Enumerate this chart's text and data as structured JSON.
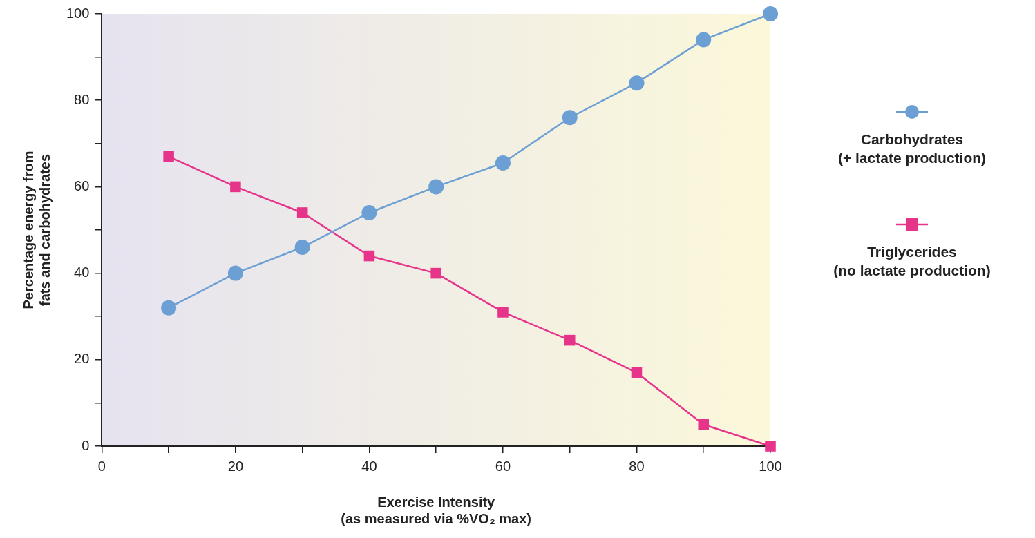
{
  "chart_data": {
    "type": "line",
    "xlabel": "Exercise Intensity\n(as measured via %VO₂ max)",
    "ylabel": "Percentage energy from\nfats and carbohydrates",
    "x": [
      10,
      20,
      30,
      40,
      50,
      60,
      70,
      80,
      90,
      100
    ],
    "series": [
      {
        "name": "Carbohydrates\n(+ lactate production)",
        "color": "#6c9fd3",
        "marker": "circle",
        "values": [
          32,
          40,
          46,
          54,
          60,
          65.5,
          76,
          84,
          94,
          100
        ]
      },
      {
        "name": "Triglycerides\n(no lactate production)",
        "color": "#e6348b",
        "marker": "square",
        "values": [
          67,
          60,
          54,
          44,
          40,
          31,
          24.5,
          17,
          5,
          0
        ]
      }
    ],
    "xlim": [
      0,
      100
    ],
    "xticks": [
      0,
      {
        "value": 10,
        "label": null
      },
      20,
      {
        "value": 30,
        "label": null
      },
      40,
      {
        "value": 50,
        "label": null
      },
      60,
      {
        "value": 70,
        "label": null
      },
      80,
      {
        "value": 90,
        "label": null
      },
      100
    ],
    "ylim": [
      0,
      100
    ],
    "yticks": [
      0,
      {
        "value": 10,
        "label": null
      },
      20,
      {
        "value": 30,
        "label": null
      },
      40,
      {
        "value": 50,
        "label": null
      },
      60,
      {
        "value": 70,
        "label": null
      },
      80,
      {
        "value": 90,
        "label": null
      },
      100
    ],
    "grid": false,
    "legend": "right",
    "line_style": "solid"
  }
}
